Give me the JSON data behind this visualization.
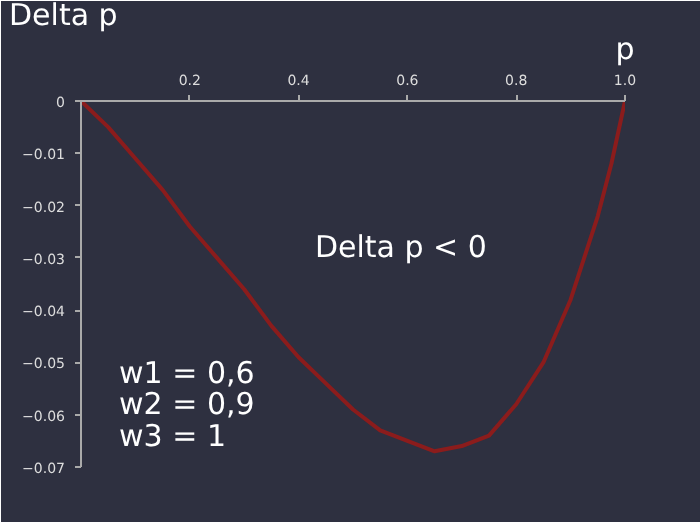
{
  "chart_data": {
    "type": "line",
    "title": "Delta p",
    "xlabel": "p",
    "x": [
      0,
      0.05,
      0.1,
      0.15,
      0.2,
      0.25,
      0.3,
      0.35,
      0.4,
      0.45,
      0.5,
      0.55,
      0.6,
      0.65,
      0.7,
      0.75,
      0.8,
      0.85,
      0.9,
      0.95,
      0.975,
      1
    ],
    "series": [
      {
        "color": "#8b1c1c",
        "values": [
          0,
          -0.005,
          -0.011,
          -0.017,
          -0.024,
          -0.03,
          -0.036,
          -0.043,
          -0.049,
          -0.054,
          -0.059,
          -0.063,
          -0.065,
          -0.067,
          -0.066,
          -0.064,
          -0.058,
          -0.05,
          -0.038,
          -0.022,
          -0.012,
          0
        ]
      }
    ],
    "xlim": [
      0,
      1
    ],
    "ylim": [
      -0.07,
      0
    ],
    "xticks": [
      0.2,
      0.4,
      0.6,
      0.8,
      {
        "value": 1,
        "label": "1.0"
      }
    ],
    "yticks": [
      0,
      -0.01,
      -0.02,
      -0.03,
      -0.04,
      -0.05,
      -0.06,
      -0.07
    ],
    "tick_labels": "xy",
    "grid": false,
    "marker": "none",
    "line_style": "solid",
    "annotations": [
      "Delta p < 0",
      "w1 = 0,6",
      "w2 = 0,9",
      "w3 = 1"
    ]
  }
}
